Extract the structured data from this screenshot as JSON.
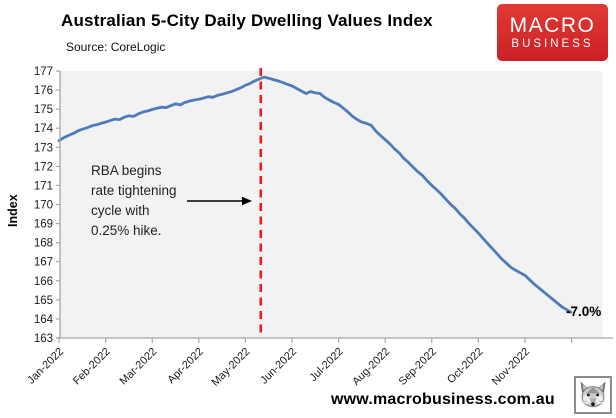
{
  "header": {
    "title": "Australian 5-City Daily Dwelling Values Index",
    "source": "Source: CoreLogic",
    "logo": {
      "line1": "MACRO",
      "line2": "BUSINESS",
      "bg_color": "#d5262c",
      "text_color": "#ffffff"
    }
  },
  "chart_data": {
    "type": "line",
    "title": "Australian 5-City Daily Dwelling Values Index",
    "subtitle": "Source: CoreLogic",
    "xlabel": "",
    "ylabel": "Index",
    "ylim": [
      163,
      177
    ],
    "ytick_step": 1,
    "grid": false,
    "legend": "none",
    "plot_bg": "#f2f2f2",
    "axis_color": "#a6a6a6",
    "tick_label_color": "#1a1a1a",
    "x_tick_labels": [
      "Jan-2022",
      "Feb-2022",
      "Mar-2022",
      "Apr-2022",
      "May-2022",
      "Jun-2022",
      "Jul-2022",
      "Aug-2022",
      "Sep-2022",
      "Oct-2022",
      "Nov-2022"
    ],
    "series": [
      {
        "name": "5-City Daily Dwelling Values Index",
        "color": "#4f7cb8",
        "x_months": [
          0,
          0.1,
          0.2,
          0.3,
          0.4,
          0.5,
          0.6,
          0.7,
          0.8,
          0.9,
          1.0,
          1.1,
          1.2,
          1.3,
          1.4,
          1.5,
          1.6,
          1.7,
          1.8,
          1.9,
          2.0,
          2.1,
          2.2,
          2.3,
          2.4,
          2.5,
          2.6,
          2.7,
          2.8,
          2.9,
          3.0,
          3.1,
          3.2,
          3.3,
          3.4,
          3.5,
          3.6,
          3.7,
          3.8,
          3.9,
          4.0,
          4.1,
          4.2,
          4.3,
          4.4,
          4.5,
          4.6,
          4.7,
          4.8,
          4.9,
          5.0,
          5.1,
          5.2,
          5.3,
          5.4,
          5.5,
          5.6,
          5.7,
          5.8,
          5.9,
          6.0,
          6.1,
          6.2,
          6.3,
          6.4,
          6.5,
          6.6,
          6.7,
          6.8,
          6.9,
          7.0,
          7.1,
          7.2,
          7.3,
          7.4,
          7.5,
          7.6,
          7.7,
          7.8,
          7.9,
          8.0,
          8.1,
          8.2,
          8.3,
          8.4,
          8.5,
          8.6,
          8.7,
          8.8,
          8.9,
          9.0,
          9.1,
          9.2,
          9.3,
          9.4,
          9.5,
          9.6,
          9.7,
          9.8,
          9.9,
          10.0,
          10.1,
          10.2,
          10.3,
          10.4,
          10.5,
          10.6,
          10.7,
          10.8,
          10.9,
          10.98
        ],
        "values": [
          173.35,
          173.5,
          173.62,
          173.72,
          173.85,
          173.95,
          174.02,
          174.12,
          174.18,
          174.25,
          174.32,
          174.4,
          174.48,
          174.45,
          174.58,
          174.65,
          174.62,
          174.75,
          174.85,
          174.9,
          174.98,
          175.05,
          175.1,
          175.08,
          175.18,
          175.28,
          175.22,
          175.35,
          175.42,
          175.48,
          175.52,
          175.58,
          175.65,
          175.62,
          175.72,
          175.78,
          175.85,
          175.92,
          176.02,
          176.12,
          176.25,
          176.35,
          176.48,
          176.58,
          176.68,
          176.62,
          176.55,
          176.48,
          176.4,
          176.3,
          176.22,
          176.08,
          175.95,
          175.82,
          175.92,
          175.85,
          175.82,
          175.62,
          175.48,
          175.35,
          175.25,
          175.05,
          174.85,
          174.62,
          174.45,
          174.32,
          174.25,
          174.15,
          173.85,
          173.62,
          173.4,
          173.18,
          172.92,
          172.7,
          172.42,
          172.2,
          171.95,
          171.72,
          171.52,
          171.25,
          171.0,
          170.78,
          170.55,
          170.28,
          170.02,
          169.8,
          169.52,
          169.28,
          169.0,
          168.75,
          168.5,
          168.22,
          167.95,
          167.68,
          167.42,
          167.15,
          166.92,
          166.7,
          166.55,
          166.42,
          166.28,
          166.05,
          165.82,
          165.62,
          165.42,
          165.22,
          165.02,
          164.82,
          164.62,
          164.48,
          164.35
        ]
      }
    ],
    "event_line": {
      "x_month": 4.33,
      "color": "#ef1a1d",
      "style": "dashed"
    },
    "annotation": {
      "lines": [
        "RBA begins",
        "rate tightening",
        "cycle with",
        "0.25% hike."
      ]
    },
    "end_label": "-7.0%"
  },
  "footer": {
    "url": "www.macrobusiness.com.au",
    "fox_icon": "fox-head-icon"
  }
}
